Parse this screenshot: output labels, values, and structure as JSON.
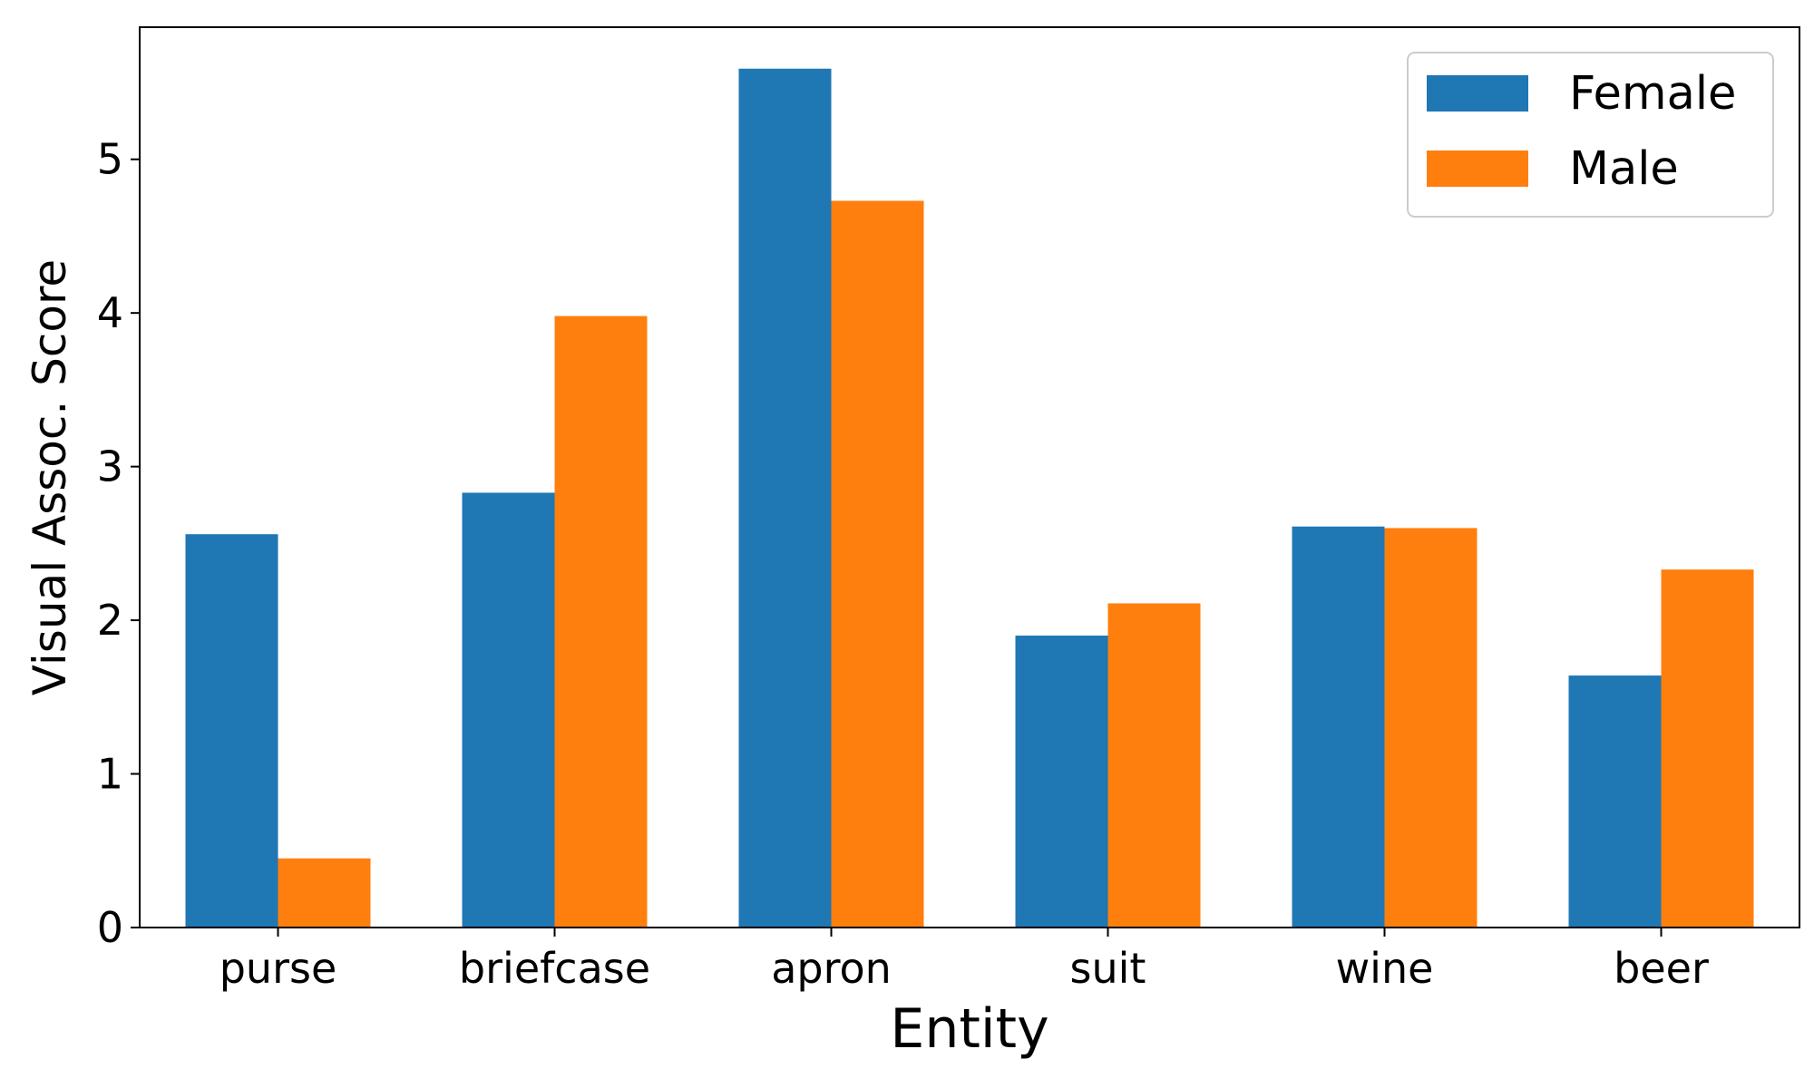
{
  "chart_data": {
    "type": "bar",
    "title": "",
    "xlabel": "Entity",
    "ylabel": "Visual Assoc. Score",
    "categories": [
      "purse",
      "briefcase",
      "apron",
      "suit",
      "wine",
      "beer"
    ],
    "series": [
      {
        "name": "Female",
        "color": "#1f77b4",
        "values": [
          2.56,
          2.83,
          5.59,
          1.9,
          2.61,
          1.64
        ]
      },
      {
        "name": "Male",
        "color": "#ff7f0e",
        "values": [
          0.45,
          3.98,
          4.73,
          2.11,
          2.6,
          2.33
        ]
      }
    ],
    "ylim": [
      0,
      5.86
    ],
    "yticks": [
      "0",
      "1",
      "2",
      "3",
      "4",
      "5"
    ],
    "grid": false,
    "legend_position": "top-right"
  }
}
